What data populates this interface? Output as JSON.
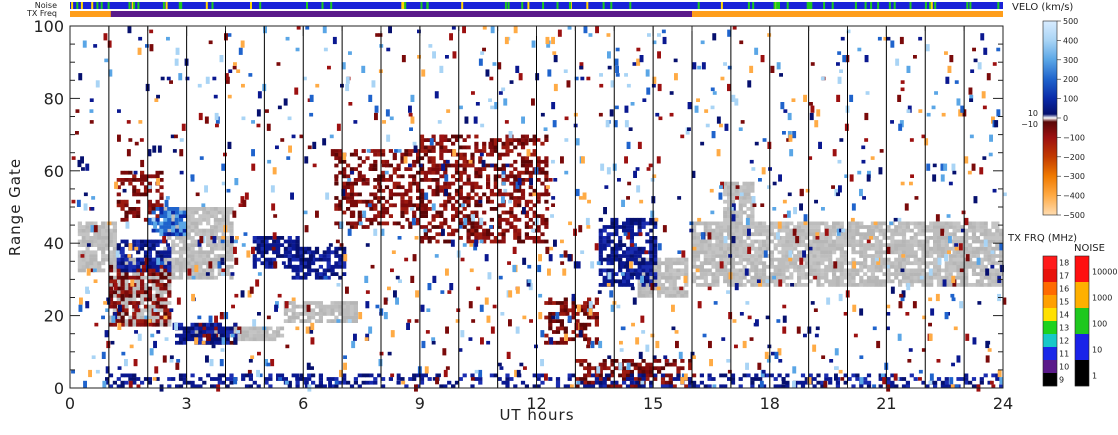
{
  "chart_data": {
    "type": "heatmap",
    "xlabel": "UT hours",
    "ylabel": "Range Gate",
    "xlim": [
      0,
      24
    ],
    "ylim": [
      0,
      100
    ],
    "x_ticks": [
      "0",
      "3",
      "6",
      "9",
      "12",
      "15",
      "18",
      "21",
      "24"
    ],
    "y_ticks": [
      "0",
      "20",
      "40",
      "60",
      "80",
      "100"
    ],
    "status_bars": [
      {
        "label": "Noise"
      },
      {
        "label": "TX Freq"
      }
    ],
    "velocity_colorbar": {
      "title": "VELO (km/s)",
      "ticks": [
        "500",
        "400",
        "300",
        "200",
        "100",
        "0",
        "−100",
        "−200",
        "−300",
        "−400",
        "−500"
      ],
      "inner_ticks": [
        "10",
        "−10"
      ]
    },
    "frequency_colorbar": {
      "title": "TX FRQ (MHz)",
      "ticks": [
        "18",
        "17",
        "16",
        "15",
        "14",
        "13",
        "12",
        "11",
        "10",
        "9"
      ]
    },
    "noise_colorbar": {
      "title": "NOISE",
      "ticks": [
        "10000",
        "1000",
        "100",
        "10",
        "1"
      ]
    },
    "colors": {
      "ground_scatter": "#bdbdbd",
      "positive_velocity": "#0a1890",
      "negative_velocity": "#7a0a0a",
      "noise_bar": "#1a22d8",
      "tx_orange": "#ff9e1a",
      "tx_purple": "#5a1a8a"
    },
    "ground_scatter_regions": [
      {
        "t": [
          0.2,
          1.2
        ],
        "gates": [
          32,
          46
        ]
      },
      {
        "t": [
          1.0,
          2.6
        ],
        "gates": [
          17,
          36
        ]
      },
      {
        "t": [
          2.4,
          4.2
        ],
        "gates": [
          30,
          50
        ]
      },
      {
        "t": [
          3.2,
          5.4
        ],
        "gates": [
          13,
          17
        ]
      },
      {
        "t": [
          5.5,
          7.3
        ],
        "gates": [
          18,
          24
        ]
      },
      {
        "t": [
          14.6,
          15.8
        ],
        "gates": [
          25,
          36
        ]
      },
      {
        "t": [
          16.0,
          24.0
        ],
        "gates": [
          28,
          46
        ]
      },
      {
        "t": [
          16.8,
          17.6
        ],
        "gates": [
          44,
          57
        ]
      }
    ],
    "positive_velocity_regions": [
      {
        "t": [
          1.2,
          2.6
        ],
        "gates": [
          32,
          41
        ]
      },
      {
        "t": [
          2.1,
          3.0
        ],
        "gates": [
          42,
          50
        ]
      },
      {
        "t": [
          4.7,
          5.8
        ],
        "gates": [
          33,
          42
        ]
      },
      {
        "t": [
          5.7,
          7.0
        ],
        "gates": [
          30,
          39
        ]
      },
      {
        "t": [
          2.7,
          4.3
        ],
        "gates": [
          12,
          18
        ]
      },
      {
        "t": [
          13.6,
          15.0
        ],
        "gates": [
          28,
          47
        ]
      },
      {
        "t": [
          0.9,
          24.0
        ],
        "gates": [
          0,
          4
        ]
      }
    ],
    "negative_velocity_regions": [
      {
        "t": [
          1.0,
          2.6
        ],
        "gates": [
          17,
          34
        ]
      },
      {
        "t": [
          1.2,
          2.4
        ],
        "gates": [
          46,
          60
        ]
      },
      {
        "t": [
          3.3,
          4.3
        ],
        "gates": [
          12,
          18
        ]
      },
      {
        "t": [
          6.8,
          9.0
        ],
        "gates": [
          44,
          66
        ]
      },
      {
        "t": [
          9.0,
          12.2
        ],
        "gates": [
          40,
          70
        ]
      },
      {
        "t": [
          12.2,
          13.5
        ],
        "gates": [
          12,
          25
        ]
      },
      {
        "t": [
          13.0,
          16.0
        ],
        "gates": [
          0,
          8
        ]
      }
    ]
  }
}
